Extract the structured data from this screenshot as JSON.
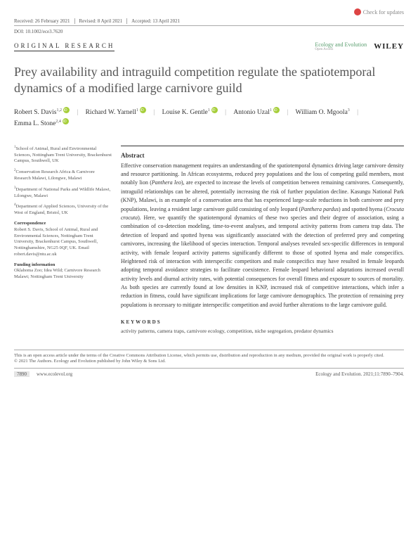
{
  "updates_label": "Check for updates",
  "meta": {
    "received": "Received: 26 February 2021",
    "revised": "Revised: 8 April 2021",
    "accepted": "Accepted: 13 April 2021"
  },
  "doi": "DOI: 10.1002/ece3.7620",
  "article_type": "ORIGINAL RESEARCH",
  "journal_name": "Ecology and Evolution",
  "journal_sub": "Open Access",
  "publisher": "WILEY",
  "title": "Prey availability and intraguild competition regulate the spatiotemporal dynamics of a modified large carnivore guild",
  "authors": [
    {
      "name": "Robert S. Davis",
      "sup": "1,2",
      "orcid": true
    },
    {
      "name": "Richard W. Yarnell",
      "sup": "1",
      "orcid": true
    },
    {
      "name": "Louise K. Gentle",
      "sup": "1",
      "orcid": true
    },
    {
      "name": "Antonio Uzal",
      "sup": "1",
      "orcid": true
    },
    {
      "name": "William O. Mgoola",
      "sup": "3",
      "orcid": false
    },
    {
      "name": "Emma L. Stone",
      "sup": "2,4",
      "orcid": true
    }
  ],
  "affiliations": [
    {
      "num": "1",
      "text": "School of Animal, Rural and Environmental Sciences, Nottingham Trent University, Brackenhurst Campus, Southwell, UK"
    },
    {
      "num": "2",
      "text": "Conservation Research Africa & Carnivore Research Malawi, Lilongwe, Malawi"
    },
    {
      "num": "3",
      "text": "Department of National Parks and Wildlife Malawi, Lilongwe, Malawi"
    },
    {
      "num": "4",
      "text": "Department of Applied Sciences, University of the West of England, Bristol, UK"
    }
  ],
  "correspondence_label": "Correspondence",
  "correspondence": "Robert S. Davis, School of Animal, Rural and Environmental Sciences, Nottingham Trent University, Brackenhurst Campus, Southwell, Nottinghamshire, NG25 0QF, UK. Email robert.davis@ntu.ac.uk",
  "funding_label": "Funding information",
  "funding": "Oklahoma Zoo; Idea Wild; Carnivore Research Malawi; Nottingham Trent University",
  "abstract_label": "Abstract",
  "abstract_body": "Effective conservation management requires an understanding of the spatiotemporal dynamics driving large carnivore density and resource partitioning. In African ecosystems, reduced prey populations and the loss of competing guild members, most notably lion (<em>Panthera leo</em>), are expected to increase the levels of competition between remaining carnivores. Consequently, intraguild relationships can be altered, potentially increasing the risk of further population decline. Kasungu National Park (KNP), Malawi, is an example of a conservation area that has experienced large-scale reductions in both carnivore and prey populations, leaving a resident large carnivore guild consisting of only leopard (<em>Panthera pardus</em>) and spotted hyena (<em>Crocuta crocuta</em>). Here, we quantify the spatiotemporal dynamics of these two species and their degree of association, using a combination of co-detection modeling, time-to-event analyses, and temporal activity patterns from camera trap data. The detection of leopard and spotted hyena was significantly associated with the detection of preferred prey and competing carnivores, increasing the likelihood of species interaction. Temporal analyses revealed sex-specific differences in temporal activity, with female leopard activity patterns significantly different to those of spotted hyena and male conspecifics. Heightened risk of interaction with interspecific competitors and male conspecifics may have resulted in female leopards adopting temporal avoidance strategies to facilitate coexistence. Female leopard behavioral adaptations increased overall activity levels and diurnal activity rates, with potential consequences for overall fitness and exposure to sources of mortality. As both species are currently found at low densities in KNP, increased risk of competitive interactions, which infer a reduction in fitness, could have significant implications for large carnivore demographics. The protection of remaining prey populations is necessary to mitigate interspecific competition and avoid further alterations to the large carnivore guild.",
  "keywords_label": "KEYWORDS",
  "keywords": "activity patterns, camera traps, carnivore ecology, competition, niche segregation, predator dynamics",
  "license1": "This is an open access article under the terms of the Creative Commons Attribution License, which permits use, distribution and reproduction in any medium, provided the original work is properly cited.",
  "license2": "© 2021 The Authors. Ecology and Evolution published by John Wiley & Sons Ltd.",
  "footer": {
    "page": "7890",
    "url": "www.ecolevol.org",
    "citation": "Ecology and Evolution. 2021;11:7890–7904."
  }
}
